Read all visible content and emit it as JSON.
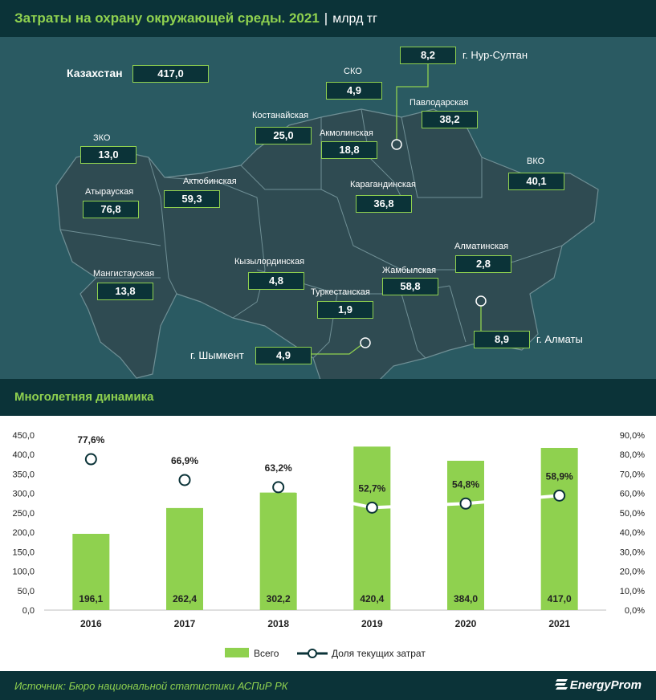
{
  "header": {
    "title": "Затраты на охрану окружающей среды. 2021",
    "separator": "|",
    "unit": "млрд тг"
  },
  "map": {
    "country_label": "Казахстан",
    "country_value": "417,0",
    "regions": [
      {
        "name": "ЗКО",
        "value": "13,0"
      },
      {
        "name": "Атырауская",
        "value": "76,8"
      },
      {
        "name": "Мангистауская",
        "value": "13,8"
      },
      {
        "name": "Актюбинская",
        "value": "59,3"
      },
      {
        "name": "Костанайская",
        "value": "25,0"
      },
      {
        "name": "СКО",
        "value": "4,9"
      },
      {
        "name": "Акмолинская",
        "value": "18,8"
      },
      {
        "name": "Павлодарская",
        "value": "38,2"
      },
      {
        "name": "Карагандинская",
        "value": "36,8"
      },
      {
        "name": "ВКО",
        "value": "40,1"
      },
      {
        "name": "Кызылординская",
        "value": "4,8"
      },
      {
        "name": "Туркестанская",
        "value": "1,9"
      },
      {
        "name": "Жамбылская",
        "value": "58,8"
      },
      {
        "name": "Алматинская",
        "value": "2,8"
      }
    ],
    "cities": [
      {
        "name": "г. Нур-Султан",
        "value": "8,2"
      },
      {
        "name": "г. Шымкент",
        "value": "4,9"
      },
      {
        "name": "г. Алматы",
        "value": "8,9"
      }
    ]
  },
  "dynamics_title": "Многолетняя динамика",
  "chart_data": {
    "type": "bar",
    "categories": [
      "2016",
      "2017",
      "2018",
      "2019",
      "2020",
      "2021"
    ],
    "series": [
      {
        "name": "Всего",
        "type": "bar",
        "axis": "left",
        "values": [
          196.1,
          262.4,
          302.2,
          420.4,
          384.0,
          417.0
        ],
        "labels": [
          "196,1",
          "262,4",
          "302,2",
          "420,4",
          "384,0",
          "417,0"
        ]
      },
      {
        "name": "Доля текущих затрат",
        "type": "line",
        "axis": "right",
        "values": [
          77.6,
          66.9,
          63.2,
          52.7,
          54.8,
          58.9
        ],
        "labels": [
          "77,6%",
          "66,9%",
          "63,2%",
          "52,7%",
          "54,8%",
          "58,9%"
        ]
      }
    ],
    "ylim_left": [
      0,
      450
    ],
    "ylim_right": [
      0,
      90
    ],
    "left_ticks": [
      "0,0",
      "50,0",
      "100,0",
      "150,0",
      "200,0",
      "250,0",
      "300,0",
      "350,0",
      "400,0",
      "450,0"
    ],
    "right_ticks": [
      "0,0%",
      "10,0%",
      "20,0%",
      "30,0%",
      "40,0%",
      "50,0%",
      "60,0%",
      "70,0%",
      "80,0%",
      "90,0%"
    ],
    "legend": "bottom",
    "bar_color": "#8fd14f",
    "line_color": "#ffffff",
    "marker_stroke": "#0b3338"
  },
  "footer": {
    "source": "Источник: Бюро национальной статистики АСПиР РК",
    "brand": "EnergyProm"
  }
}
